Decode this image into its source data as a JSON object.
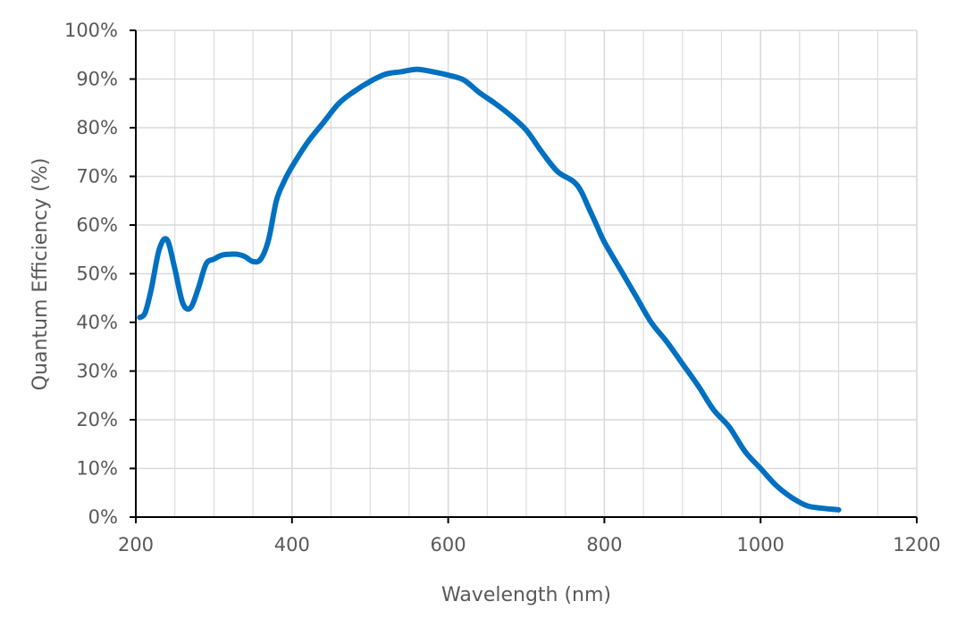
{
  "chart_data": {
    "type": "line",
    "title": "",
    "xlabel": "Wavelength (nm)",
    "ylabel": "Quantum Efficiency (%)",
    "xlim": [
      200,
      1200
    ],
    "ylim": [
      0,
      100
    ],
    "x_ticks": [
      "200",
      "400",
      "600",
      "800",
      "1000",
      "1200"
    ],
    "y_ticks": [
      "0%",
      "10%",
      "20%",
      "30%",
      "40%",
      "50%",
      "60%",
      "70%",
      "80%",
      "90%",
      "100%"
    ],
    "x_tick_values": [
      200,
      400,
      600,
      800,
      1000,
      1200
    ],
    "y_tick_values": [
      0,
      10,
      20,
      30,
      40,
      50,
      60,
      70,
      80,
      90,
      100
    ],
    "x_minor_step": 50,
    "y_minor_step": 10,
    "grid": true,
    "legend": "none",
    "series_color": "#0070C0",
    "grid_color": "#D9D9D9",
    "axis_color": "#000000",
    "series": [
      {
        "name": "Quantum Efficiency",
        "x": [
          205,
          212,
          220,
          230,
          240,
          250,
          260,
          270,
          280,
          290,
          300,
          310,
          320,
          330,
          340,
          350,
          360,
          370,
          380,
          390,
          400,
          420,
          440,
          460,
          480,
          500,
          520,
          540,
          560,
          580,
          600,
          620,
          640,
          660,
          680,
          700,
          720,
          740,
          760,
          770,
          780,
          790,
          800,
          820,
          840,
          860,
          880,
          900,
          920,
          940,
          960,
          980,
          1000,
          1020,
          1040,
          1060,
          1080,
          1100
        ],
        "y": [
          41,
          42,
          47,
          55,
          57,
          51,
          44,
          43,
          47,
          52,
          53,
          53.8,
          54,
          54,
          53.5,
          52.5,
          53,
          57,
          65,
          69,
          72,
          77,
          81,
          85,
          87.5,
          89.5,
          91,
          91.5,
          92,
          91.5,
          90.8,
          89.8,
          87.2,
          85,
          82.5,
          79.5,
          75,
          71,
          69,
          67,
          63.5,
          60,
          56.5,
          51,
          45.5,
          40,
          36,
          31.5,
          27,
          22,
          18.5,
          13.5,
          10,
          6.5,
          4,
          2.3,
          1.8,
          1.5
        ]
      }
    ]
  }
}
